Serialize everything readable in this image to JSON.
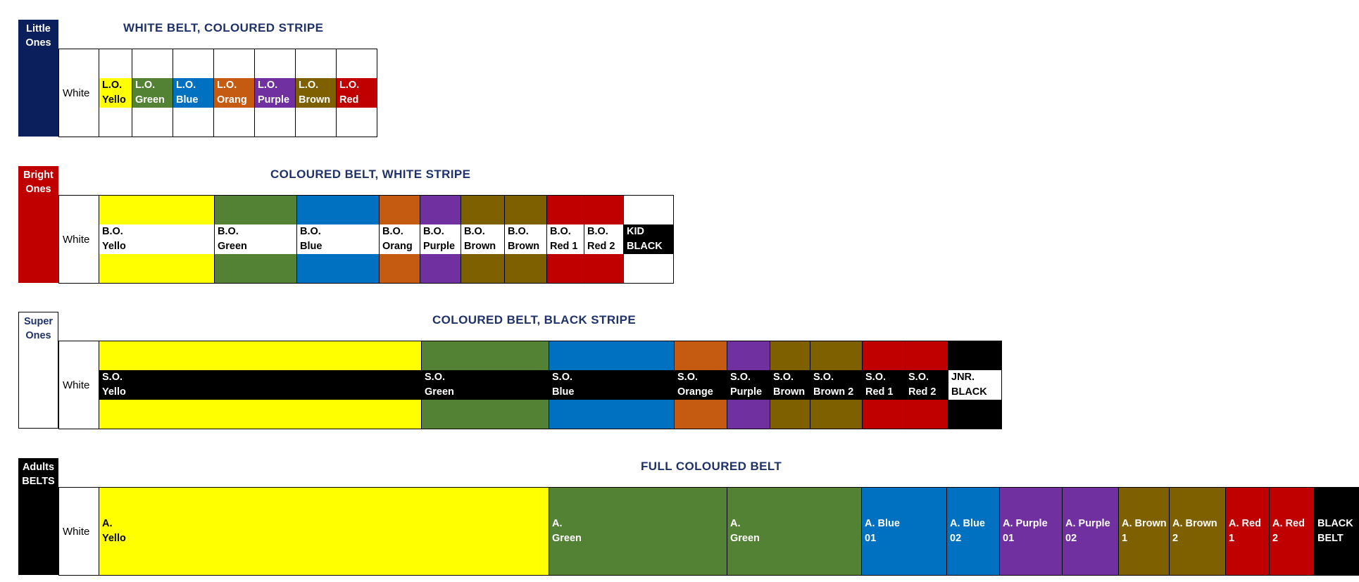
{
  "colors": {
    "navy": "#0a1f5c",
    "red": "#c00000",
    "black": "#000000",
    "yellow": "#ffff00",
    "green": "#548235",
    "blue": "#0070c0",
    "orange": "#c55a11",
    "purple": "#7030a0",
    "brown": "#7f6000",
    "title": "#1f3269"
  },
  "sections": [
    {
      "tag": [
        "Little",
        "Ones"
      ],
      "title": "WHITE BELT, COLOURED STRIPE",
      "white_label": "White",
      "belts": [
        {
          "l1": "L.O.",
          "l2": "Yello",
          "color": "yellow"
        },
        {
          "l1": "L.O.",
          "l2": "Green",
          "color": "green"
        },
        {
          "l1": "L.O.",
          "l2": "Blue",
          "color": "blue"
        },
        {
          "l1": "L.O.",
          "l2": "Orang",
          "color": "orange"
        },
        {
          "l1": "L.O.",
          "l2": "Purple",
          "color": "purple"
        },
        {
          "l1": "L.O.",
          "l2": "Brown",
          "color": "brown"
        },
        {
          "l1": "L.O.",
          "l2": "Red",
          "color": "red"
        }
      ]
    },
    {
      "tag": [
        "Bright",
        "Ones"
      ],
      "title": "COLOURED BELT, WHITE STRIPE",
      "white_label": "White",
      "belts": [
        {
          "l1": "B.O.",
          "l2": "Yello",
          "color": "yellow"
        },
        {
          "l1": "B.O.",
          "l2": "Green",
          "color": "green"
        },
        {
          "l1": "B.O.",
          "l2": "Blue",
          "color": "blue"
        },
        {
          "l1": "B.O.",
          "l2": "Orang",
          "color": "orange"
        },
        {
          "l1": "B.O.",
          "l2": "Purple",
          "color": "purple"
        },
        {
          "l1": "B.O.",
          "l2": "Brown",
          "color": "brown"
        },
        {
          "l1": "B.O.",
          "l2": "Brown",
          "color": "brown"
        },
        {
          "l1": "B.O.",
          "l2": "Red 1",
          "color": "red"
        },
        {
          "l1": "B.O.",
          "l2": "Red 2",
          "color": "red"
        },
        {
          "l1": "KID",
          "l2": "BLACK",
          "color": "black"
        }
      ]
    },
    {
      "tag": [
        "Super",
        "Ones"
      ],
      "title": "COLOURED BELT, BLACK STRIPE",
      "white_label": "White",
      "belts": [
        {
          "l1": "S.O.",
          "l2": "Yello",
          "color": "yellow"
        },
        {
          "l1": "S.O.",
          "l2": "Green",
          "color": "green"
        },
        {
          "l1": "S.O.",
          "l2": "Blue",
          "color": "blue"
        },
        {
          "l1": "S.O.",
          "l2": "Orange",
          "color": "orange"
        },
        {
          "l1": "S.O.",
          "l2": "Purple",
          "color": "purple"
        },
        {
          "l1": "S.O.",
          "l2": "Brown",
          "color": "brown"
        },
        {
          "l1": "S.O.",
          "l2": "Brown 2",
          "color": "brown"
        },
        {
          "l1": "S.O.",
          "l2": "Red 1",
          "color": "red"
        },
        {
          "l1": "S.O.",
          "l2": "Red 2",
          "color": "red"
        },
        {
          "l1": "JNR.",
          "l2": "BLACK",
          "color": "black"
        }
      ]
    },
    {
      "tag": [
        "Adults",
        "BELTS"
      ],
      "title": "FULL COLOURED BELT",
      "white_label": "White",
      "belts": [
        {
          "l1": "A.",
          "l2": "Yello",
          "color": "yellow"
        },
        {
          "l1": "A.",
          "l2": "Green",
          "color": "green"
        },
        {
          "l1": "A.",
          "l2": "Green",
          "color": "green"
        },
        {
          "l1": "A. Blue",
          "l2": "01",
          "color": "blue"
        },
        {
          "l1": "A. Blue",
          "l2": "02",
          "color": "blue"
        },
        {
          "l1": "A. Purple",
          "l2": "01",
          "color": "purple"
        },
        {
          "l1": "A. Purple",
          "l2": "02",
          "color": "purple"
        },
        {
          "l1": "A. Brown",
          "l2": "1",
          "color": "brown"
        },
        {
          "l1": "A. Brown",
          "l2": "2",
          "color": "brown"
        },
        {
          "l1": "A. Red",
          "l2": "1",
          "color": "red"
        },
        {
          "l1": "A. Red",
          "l2": "2",
          "color": "red"
        },
        {
          "l1": "BLACK",
          "l2": "BELT",
          "color": "black"
        }
      ]
    }
  ]
}
